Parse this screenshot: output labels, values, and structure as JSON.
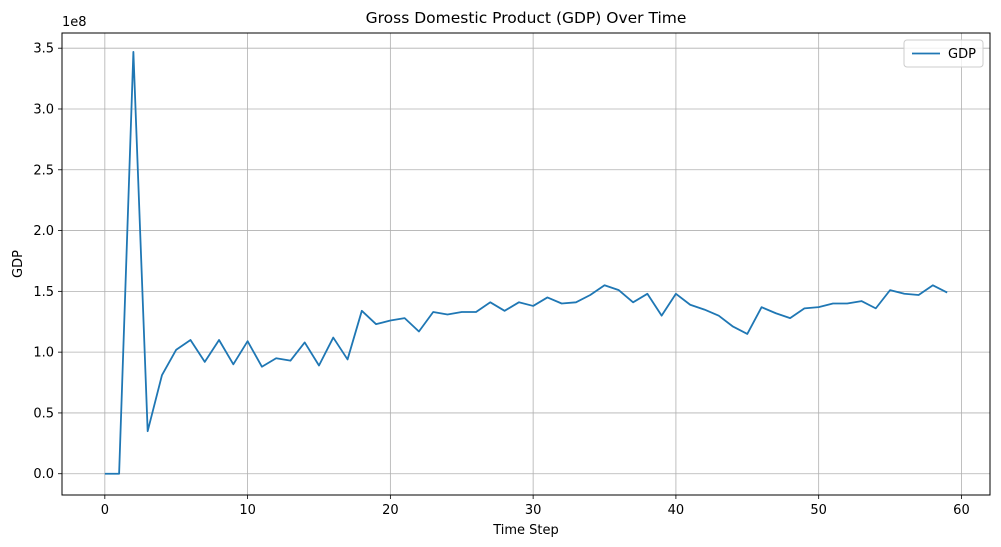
{
  "chart_data": {
    "type": "line",
    "title": "Gross Domestic Product (GDP) Over Time",
    "xlabel": "Time Step",
    "ylabel": "GDP",
    "y_offset_label": "1e8",
    "y_scale": 100000000,
    "xlim": [
      -3,
      62
    ],
    "ylim": [
      -17500000,
      362500000
    ],
    "x_ticks": [
      0,
      10,
      20,
      30,
      40,
      50,
      60
    ],
    "y_ticks": [
      0,
      50000000,
      100000000,
      150000000,
      200000000,
      250000000,
      300000000,
      350000000
    ],
    "y_tick_labels": [
      "0.0",
      "0.5",
      "1.0",
      "1.5",
      "2.0",
      "2.5",
      "3.0",
      "3.5"
    ],
    "grid": true,
    "legend_position": "top-right",
    "colors": {
      "series": "#1f77b4",
      "grid": "#b0b0b0"
    },
    "series": [
      {
        "name": "GDP",
        "x": [
          0,
          1,
          2,
          3,
          4,
          5,
          6,
          7,
          8,
          9,
          10,
          11,
          12,
          13,
          14,
          15,
          16,
          17,
          18,
          19,
          20,
          21,
          22,
          23,
          24,
          25,
          26,
          27,
          28,
          29,
          30,
          31,
          32,
          33,
          34,
          35,
          36,
          37,
          38,
          39,
          40,
          41,
          42,
          43,
          44,
          45,
          46,
          47,
          48,
          49,
          50,
          51,
          52,
          53,
          54,
          55,
          56,
          57,
          58,
          59
        ],
        "values": [
          0,
          0,
          347000000,
          35000000,
          81000000,
          102000000,
          110000000,
          92000000,
          110000000,
          90000000,
          109000000,
          88000000,
          95000000,
          93000000,
          108000000,
          89000000,
          112000000,
          94000000,
          134000000,
          123000000,
          126000000,
          128000000,
          117000000,
          133000000,
          131000000,
          133000000,
          133000000,
          141000000,
          134000000,
          141000000,
          138000000,
          145000000,
          140000000,
          141000000,
          147000000,
          155000000,
          151000000,
          141000000,
          148000000,
          130000000,
          148000000,
          139000000,
          135000000,
          130000000,
          121000000,
          115000000,
          137000000,
          132000000,
          128000000,
          136000000,
          137000000,
          140000000,
          140000000,
          142000000,
          136000000,
          151000000,
          148000000,
          147000000,
          155000000,
          149000000
        ]
      }
    ]
  }
}
